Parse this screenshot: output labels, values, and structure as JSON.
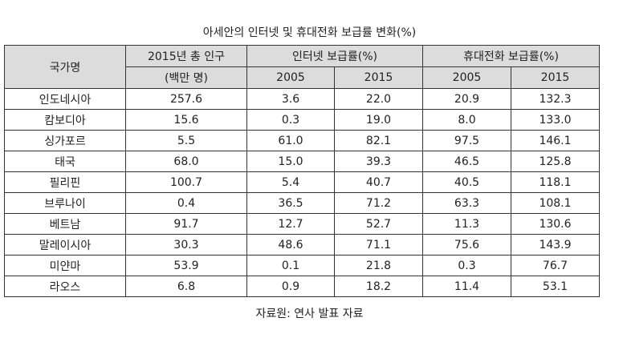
{
  "title": "아세안의 인터넷 및 휴대전화 보급률 변화(%)",
  "headers": {
    "country": "국가명",
    "population_line1": "2015년 총 인구",
    "population_line2": "(백만 명)",
    "internet": "인터넷 보급률(%)",
    "mobile": "휴대전화 보급률(%)",
    "year_2005_internet": "2005",
    "year_2015_internet": "2015",
    "year_2005_mobile": "2005",
    "year_2015_mobile": "2015"
  },
  "rows": [
    {
      "country": "인도네시아",
      "population": "257.6",
      "internet_2005": "3.6",
      "internet_2015": "22.0",
      "mobile_2005": "20.9",
      "mobile_2015": "132.3"
    },
    {
      "country": "캄보디아",
      "population": "15.6",
      "internet_2005": "0.3",
      "internet_2015": "19.0",
      "mobile_2005": "8.0",
      "mobile_2015": "133.0"
    },
    {
      "country": "싱가포르",
      "population": "5.5",
      "internet_2005": "61.0",
      "internet_2015": "82.1",
      "mobile_2005": "97.5",
      "mobile_2015": "146.1"
    },
    {
      "country": "태국",
      "population": "68.0",
      "internet_2005": "15.0",
      "internet_2015": "39.3",
      "mobile_2005": "46.5",
      "mobile_2015": "125.8"
    },
    {
      "country": "필리핀",
      "population": "100.7",
      "internet_2005": "5.4",
      "internet_2015": "40.7",
      "mobile_2005": "40.5",
      "mobile_2015": "118.1"
    },
    {
      "country": "브루나이",
      "population": "0.4",
      "internet_2005": "36.5",
      "internet_2015": "71.2",
      "mobile_2005": "63.3",
      "mobile_2015": "108.1"
    },
    {
      "country": "베트남",
      "population": "91.7",
      "internet_2005": "12.7",
      "internet_2015": "52.7",
      "mobile_2005": "11.3",
      "mobile_2015": "130.6"
    },
    {
      "country": "말레이시아",
      "population": "30.3",
      "internet_2005": "48.6",
      "internet_2015": "71.1",
      "mobile_2005": "75.6",
      "mobile_2015": "143.9"
    },
    {
      "country": "미얀마",
      "population": "53.9",
      "internet_2005": "0.1",
      "internet_2015": "21.8",
      "mobile_2005": "0.3",
      "mobile_2015": "76.7"
    },
    {
      "country": "라오스",
      "population": "6.8",
      "internet_2005": "0.9",
      "internet_2015": "18.2",
      "mobile_2005": "11.4",
      "mobile_2015": "53.1"
    }
  ],
  "source": "자료원: 연사 발표 자료",
  "colors": {
    "header_bg": "#dcdcdc",
    "border": "#333333"
  }
}
